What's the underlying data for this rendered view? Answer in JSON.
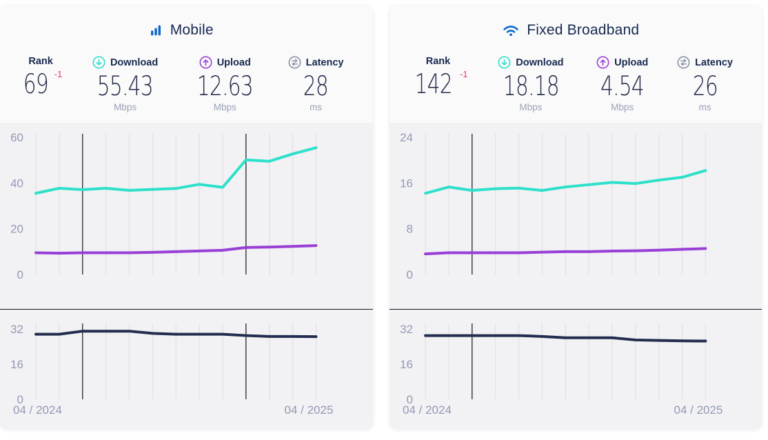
{
  "panels": [
    {
      "title": "Mobile",
      "rank": {
        "label": "Rank",
        "value": "69",
        "change": "-1"
      },
      "download": {
        "label": "Download",
        "value": "55.43",
        "unit": "Mbps"
      },
      "upload": {
        "label": "Upload",
        "value": "12.63",
        "unit": "Mbps"
      },
      "latency": {
        "label": "Latency",
        "value": "28",
        "unit": "ms"
      }
    },
    {
      "title": "Fixed Broadband",
      "rank": {
        "label": "Rank",
        "value": "142",
        "change": "-1"
      },
      "download": {
        "label": "Download",
        "value": "18.18",
        "unit": "Mbps"
      },
      "upload": {
        "label": "Upload",
        "value": "4.54",
        "unit": "Mbps"
      },
      "latency": {
        "label": "Latency",
        "value": "26",
        "unit": "ms"
      }
    }
  ],
  "chart_data": [
    {
      "type": "line",
      "kind": "speed",
      "title": "Mobile download and upload speeds (Mbps)",
      "x": [
        "04/2024",
        "05/2024",
        "06/2024",
        "07/2024",
        "08/2024",
        "09/2024",
        "10/2024",
        "11/2024",
        "12/2024",
        "01/2025",
        "02/2025",
        "03/2025",
        "04/2025"
      ],
      "ylim": [
        0,
        60
      ],
      "yticks": [
        60,
        40,
        20,
        0
      ],
      "grid": "vertical-only",
      "legend": "none",
      "annotation_x_indices": [
        2,
        9
      ],
      "series": [
        {
          "name": "Download",
          "color": "#2ee0cb",
          "values": [
            35.5,
            37.7,
            37.1,
            37.7,
            36.8,
            37.2,
            37.6,
            39.4,
            38.1,
            50.1,
            49.5,
            52.7,
            55.43
          ]
        },
        {
          "name": "Upload",
          "color": "#993fd6",
          "values": [
            9.5,
            9.3,
            9.5,
            9.5,
            9.5,
            9.7,
            10.0,
            10.3,
            10.6,
            11.8,
            12.0,
            12.3,
            12.63
          ]
        }
      ]
    },
    {
      "type": "line",
      "kind": "lat",
      "title": "Mobile latency (ms)",
      "x": [
        "04/2024",
        "05/2024",
        "06/2024",
        "07/2024",
        "08/2024",
        "09/2024",
        "10/2024",
        "11/2024",
        "12/2024",
        "01/2025",
        "02/2025",
        "03/2025",
        "04/2025"
      ],
      "ylim": [
        0,
        37
      ],
      "yticks": [
        32,
        16,
        0
      ],
      "grid": "vertical-only",
      "legend": "none",
      "annotation_x_indices": [
        2,
        9
      ],
      "xtick_labels": [
        "04 / 2024",
        "04 / 2025"
      ],
      "series": [
        {
          "name": "Latency",
          "color": "#232d4f",
          "values": [
            29.6,
            29.6,
            31.0,
            31.0,
            31.0,
            30.0,
            29.6,
            29.6,
            29.6,
            29.0,
            28.6,
            28.6,
            28.5
          ]
        }
      ]
    },
    {
      "type": "line",
      "kind": "speed",
      "title": "Fixed Broadband download and upload speeds (Mbps)",
      "x": [
        "04/2024",
        "05/2024",
        "06/2024",
        "07/2024",
        "08/2024",
        "09/2024",
        "10/2024",
        "11/2024",
        "12/2024",
        "01/2025",
        "02/2025",
        "03/2025",
        "04/2025"
      ],
      "ylim": [
        0,
        24
      ],
      "yticks": [
        24,
        16,
        8,
        0
      ],
      "grid": "vertical-only",
      "legend": "none",
      "annotation_x_indices": [
        2
      ],
      "series": [
        {
          "name": "Download",
          "color": "#2ee0cb",
          "values": [
            14.2,
            15.3,
            14.7,
            15.0,
            15.1,
            14.7,
            15.3,
            15.7,
            16.1,
            15.9,
            16.5,
            17.0,
            18.18
          ]
        },
        {
          "name": "Upload",
          "color": "#993fd6",
          "values": [
            3.6,
            3.8,
            3.8,
            3.8,
            3.8,
            3.9,
            4.0,
            4.0,
            4.1,
            4.15,
            4.25,
            4.4,
            4.54
          ]
        }
      ]
    },
    {
      "type": "line",
      "kind": "lat",
      "title": "Fixed Broadband latency (ms)",
      "x": [
        "04/2024",
        "05/2024",
        "06/2024",
        "07/2024",
        "08/2024",
        "09/2024",
        "10/2024",
        "11/2024",
        "12/2024",
        "01/2025",
        "02/2025",
        "03/2025",
        "04/2025"
      ],
      "ylim": [
        0,
        37
      ],
      "yticks": [
        32,
        16,
        0
      ],
      "grid": "vertical-only",
      "legend": "none",
      "annotation_x_indices": [
        2
      ],
      "xtick_labels": [
        "04 / 2024",
        "04 / 2025"
      ],
      "series": [
        {
          "name": "Latency",
          "color": "#232d4f",
          "values": [
            29.0,
            29.0,
            29.0,
            29.0,
            29.0,
            28.6,
            28.0,
            28.0,
            28.0,
            27.0,
            26.8,
            26.6,
            26.5
          ]
        }
      ]
    }
  ],
  "colors": {
    "brand_blue": "#0b69cb",
    "download_teal": "#2ee0cb",
    "upload_purple": "#993fd6",
    "latency_navy": "#232d4f",
    "rank_change_pink": "#e23b70",
    "axis_text": "#9299b4",
    "gridline": "#e3e3e7",
    "annotation_line": "#15151c",
    "card_header_bg": "#fafafb",
    "chart_bg": "#f2f2f4",
    "title_text": "#17294e"
  }
}
